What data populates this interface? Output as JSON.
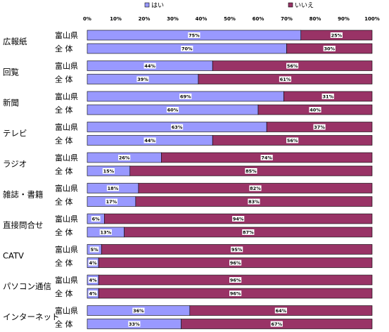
{
  "chart_data": {
    "type": "bar",
    "orientation": "horizontal",
    "stacked": "percent",
    "xlim": [
      0,
      100
    ],
    "x_ticks": [
      "0%",
      "10%",
      "20%",
      "30%",
      "40%",
      "50%",
      "60%",
      "70%",
      "80%",
      "90%",
      "100%"
    ],
    "legend_position": "top",
    "series": [
      {
        "name": "はい",
        "color": "#9999ff"
      },
      {
        "name": "いいえ",
        "color": "#993366"
      }
    ],
    "groups": [
      {
        "label": "広報紙",
        "rows": [
          {
            "sublabel": "富山県",
            "values": [
              75,
              25
            ]
          },
          {
            "sublabel": "全 体",
            "values": [
              70,
              30
            ]
          }
        ]
      },
      {
        "label": "回覧",
        "rows": [
          {
            "sublabel": "富山県",
            "values": [
              44,
              56
            ]
          },
          {
            "sublabel": "全 体",
            "values": [
              39,
              61
            ]
          }
        ]
      },
      {
        "label": "新聞",
        "rows": [
          {
            "sublabel": "富山県",
            "values": [
              69,
              31
            ]
          },
          {
            "sublabel": "全 体",
            "values": [
              60,
              40
            ]
          }
        ]
      },
      {
        "label": "テレビ",
        "rows": [
          {
            "sublabel": "富山県",
            "values": [
              63,
              37
            ]
          },
          {
            "sublabel": "全 体",
            "values": [
              44,
              56
            ]
          }
        ]
      },
      {
        "label": "ラジオ",
        "rows": [
          {
            "sublabel": "富山県",
            "values": [
              26,
              74
            ]
          },
          {
            "sublabel": "全 体",
            "values": [
              15,
              85
            ]
          }
        ]
      },
      {
        "label": "雑誌・書籍",
        "rows": [
          {
            "sublabel": "富山県",
            "values": [
              18,
              82
            ]
          },
          {
            "sublabel": "全 体",
            "values": [
              17,
              83
            ]
          }
        ]
      },
      {
        "label": "直接問合せ",
        "rows": [
          {
            "sublabel": "富山県",
            "values": [
              6,
              94
            ]
          },
          {
            "sublabel": "全 体",
            "values": [
              13,
              87
            ]
          }
        ]
      },
      {
        "label": "CATV",
        "rows": [
          {
            "sublabel": "富山県",
            "values": [
              5,
              95
            ]
          },
          {
            "sublabel": "全 体",
            "values": [
              4,
              96
            ]
          }
        ]
      },
      {
        "label": "パソコン通信",
        "rows": [
          {
            "sublabel": "富山県",
            "values": [
              4,
              96
            ]
          },
          {
            "sublabel": "全 体",
            "values": [
              4,
              96
            ]
          }
        ]
      },
      {
        "label": "インターネット",
        "rows": [
          {
            "sublabel": "富山県",
            "values": [
              36,
              64
            ]
          },
          {
            "sublabel": "全 体",
            "values": [
              33,
              67
            ]
          }
        ]
      }
    ]
  }
}
